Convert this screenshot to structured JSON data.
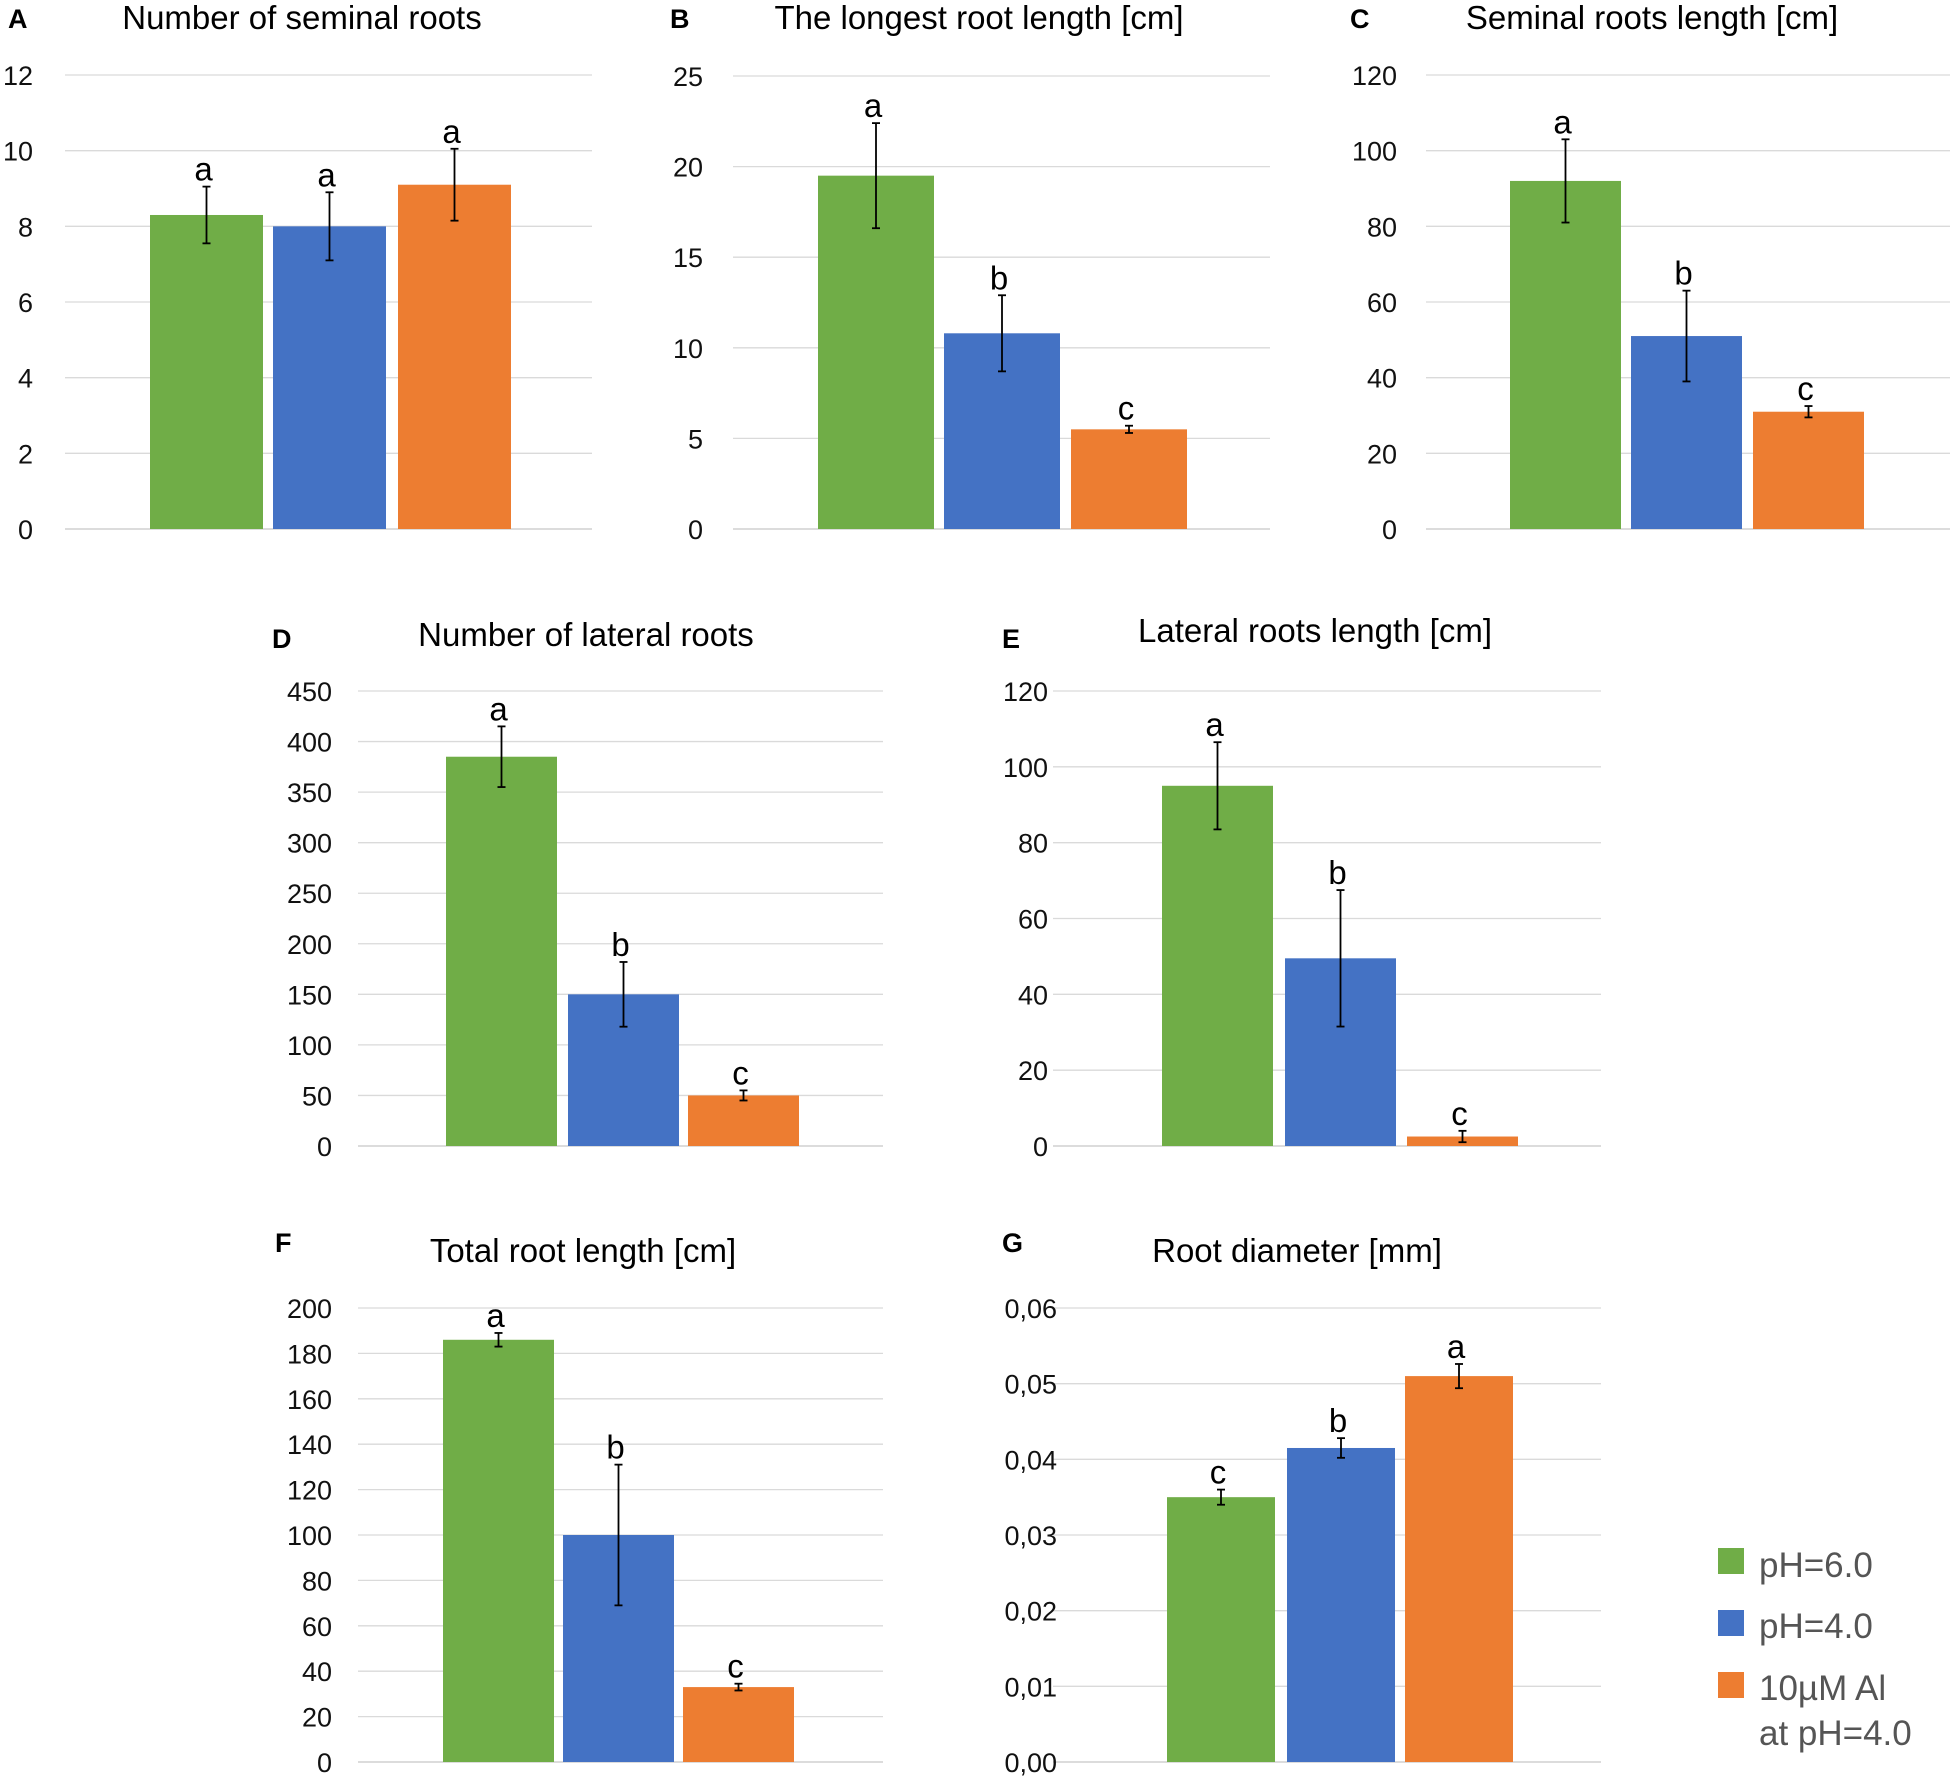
{
  "legend": [
    {
      "label": "pH=6.0",
      "color": "#70ad47"
    },
    {
      "label": "pH=4.0",
      "color": "#4472c4"
    },
    {
      "label": "10µM Al",
      "label2": "at pH=4.0",
      "color": "#ed7d31"
    }
  ],
  "chart_data": [
    {
      "panel": "A",
      "type": "bar",
      "title": "Number of seminal roots",
      "categories": [
        "pH=6.0",
        "pH=4.0",
        "10µM Al at pH=4.0"
      ],
      "values": [
        8.3,
        8.0,
        9.1
      ],
      "errors": [
        0.75,
        0.9,
        0.95
      ],
      "significance": [
        "a",
        "a",
        "a"
      ],
      "ylim": [
        0,
        12
      ],
      "yticks": [
        "0",
        "2",
        "4",
        "6",
        "8",
        "10",
        "12"
      ],
      "grid": true
    },
    {
      "panel": "B",
      "type": "bar",
      "title": "The longest root length [cm]",
      "categories": [
        "pH=6.0",
        "pH=4.0",
        "10µM Al at pH=4.0"
      ],
      "values": [
        19.5,
        10.8,
        5.5
      ],
      "errors": [
        2.9,
        2.1,
        0.2
      ],
      "significance": [
        "a",
        "b",
        "c"
      ],
      "ylim": [
        0,
        25
      ],
      "yticks": [
        "0",
        "5",
        "10",
        "15",
        "20",
        "25"
      ],
      "grid": true
    },
    {
      "panel": "C",
      "type": "bar",
      "title": "Seminal roots length [cm]",
      "categories": [
        "pH=6.0",
        "pH=4.0",
        "10µM Al at pH=4.0"
      ],
      "values": [
        92,
        51,
        31
      ],
      "errors": [
        11,
        12,
        1.5
      ],
      "significance": [
        "a",
        "b",
        "c"
      ],
      "ylim": [
        0,
        120
      ],
      "yticks": [
        "0",
        "20",
        "40",
        "60",
        "80",
        "100",
        "120"
      ],
      "grid": true
    },
    {
      "panel": "D",
      "type": "bar",
      "title": "Number of lateral roots",
      "categories": [
        "pH=6.0",
        "pH=4.0",
        "10µM Al at pH=4.0"
      ],
      "values": [
        385,
        150,
        50
      ],
      "errors": [
        30,
        32,
        5
      ],
      "significance": [
        "a",
        "b",
        "c"
      ],
      "ylim": [
        0,
        450
      ],
      "yticks": [
        "0",
        "50",
        "100",
        "150",
        "200",
        "250",
        "300",
        "350",
        "400",
        "450"
      ],
      "grid": true
    },
    {
      "panel": "E",
      "type": "bar",
      "title": "Lateral roots length [cm]",
      "categories": [
        "pH=6.0",
        "pH=4.0",
        "10µM Al at pH=4.0"
      ],
      "values": [
        95,
        49.5,
        2.5
      ],
      "errors": [
        11.5,
        18,
        1.5
      ],
      "significance": [
        "a",
        "b",
        "c"
      ],
      "ylim": [
        0,
        120
      ],
      "yticks": [
        "0",
        "20",
        "40",
        "60",
        "80",
        "100",
        "120"
      ],
      "grid": true
    },
    {
      "panel": "F",
      "type": "bar",
      "title": "Total root length [cm]",
      "categories": [
        "pH=6.0",
        "pH=4.0",
        "10µM Al at pH=4.0"
      ],
      "values": [
        186,
        100,
        33
      ],
      "errors": [
        3,
        31,
        1.5
      ],
      "significance": [
        "a",
        "b",
        "c"
      ],
      "ylim": [
        0,
        200
      ],
      "yticks": [
        "0",
        "20",
        "40",
        "60",
        "80",
        "100",
        "120",
        "140",
        "160",
        "180",
        "200"
      ],
      "grid": true
    },
    {
      "panel": "G",
      "type": "bar",
      "title": "Root diameter [mm]",
      "categories": [
        "pH=6.0",
        "pH=4.0",
        "10µM Al at pH=4.0"
      ],
      "values": [
        0.035,
        0.0415,
        0.051
      ],
      "errors": [
        0.001,
        0.0013,
        0.0016
      ],
      "significance": [
        "c",
        "b",
        "a"
      ],
      "ylim": [
        0,
        0.06
      ],
      "yticks": [
        "0,00",
        "0,01",
        "0,02",
        "0,03",
        "0,04",
        "0,05",
        "0,06"
      ],
      "grid": true
    }
  ]
}
